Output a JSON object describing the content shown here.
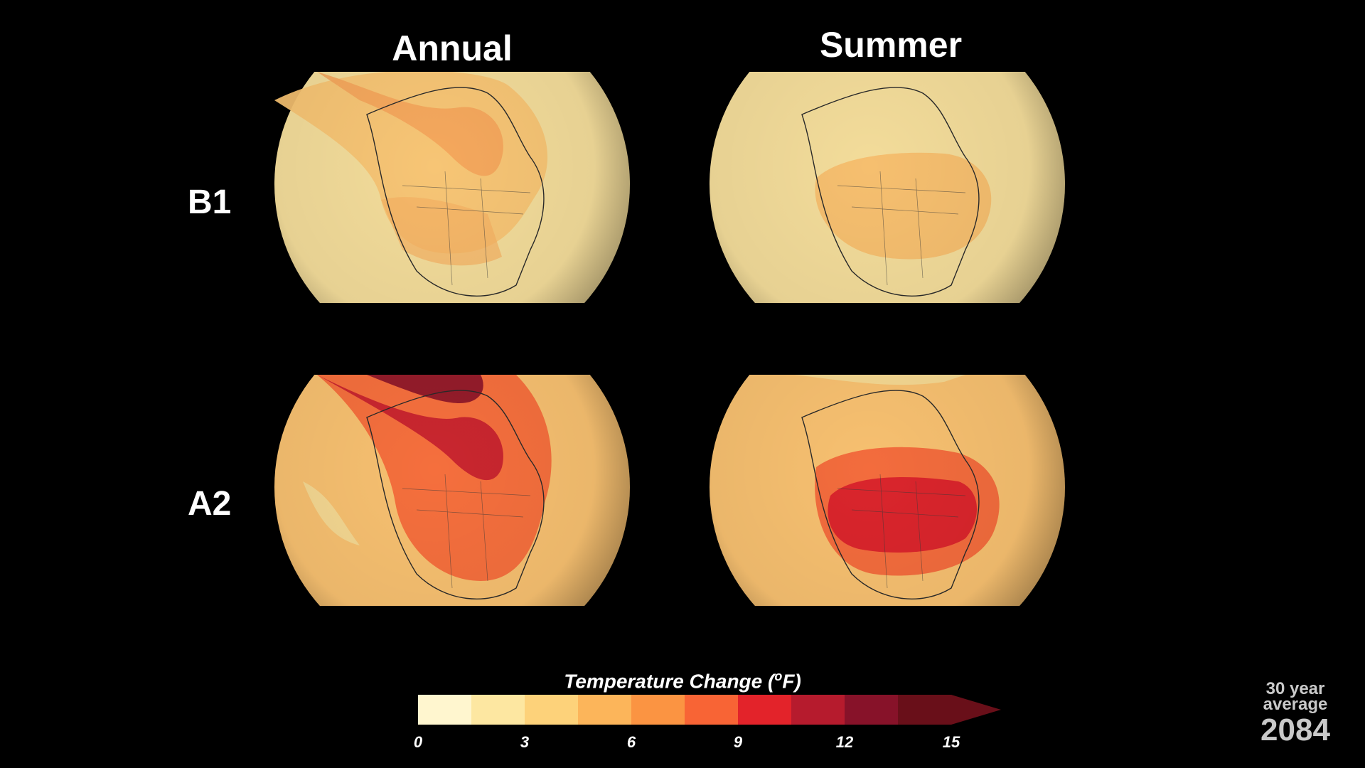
{
  "columns": {
    "annual": "Annual",
    "summer": "Summer"
  },
  "rows": {
    "b1": "B1",
    "a2": "A2"
  },
  "legend": {
    "title_main": "Temperature Change (",
    "title_unit": "o",
    "title_end": "F)",
    "unit": "°F",
    "ticks": [
      "0",
      "3",
      "6",
      "9",
      "12",
      "15"
    ],
    "colors": [
      "#fff6cf",
      "#fde7a1",
      "#fdd27a",
      "#fcb55a",
      "#fb9442",
      "#f86435",
      "#e3232a",
      "#b61b2d",
      "#871229",
      "#690f19"
    ],
    "overflow_color": "#690f19"
  },
  "timestamp": {
    "label": "30 year average",
    "year": "2084"
  },
  "panels": [
    {
      "id": "b1-annual",
      "scenario": "B1",
      "season": "Annual"
    },
    {
      "id": "b1-summer",
      "scenario": "B1",
      "season": "Summer"
    },
    {
      "id": "a2-annual",
      "scenario": "A2",
      "season": "Annual"
    },
    {
      "id": "a2-summer",
      "scenario": "A2",
      "season": "Summer"
    }
  ]
}
